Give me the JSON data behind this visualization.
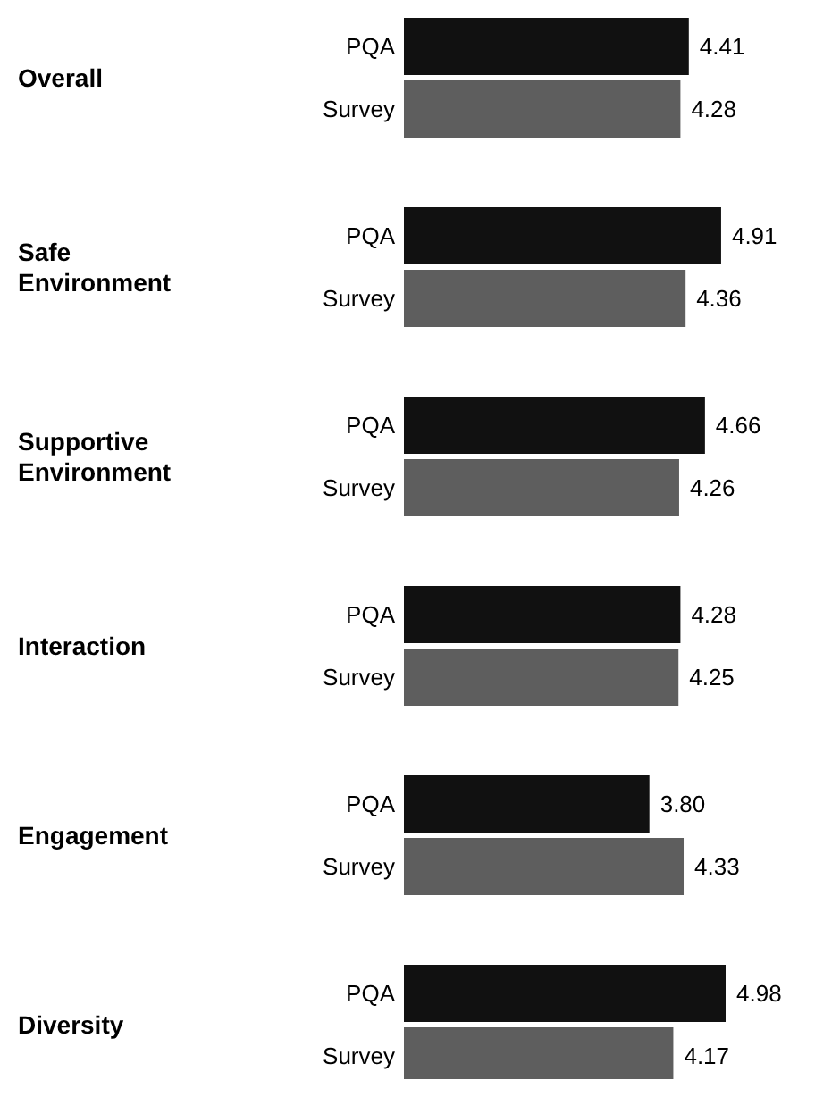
{
  "chart_data": {
    "type": "bar",
    "orientation": "horizontal",
    "categories": [
      "Overall",
      "Safe Environment",
      "Supportive Environment",
      "Interaction",
      "Engagement",
      "Diversity"
    ],
    "series": [
      {
        "name": "PQA",
        "color": "#111111",
        "values": [
          4.41,
          4.91,
          4.66,
          4.28,
          3.8,
          4.98
        ],
        "value_labels": [
          "4.41",
          "4.91",
          "4.66",
          "4.28",
          "3.80",
          "4.98"
        ]
      },
      {
        "name": "Survey",
        "color": "#5e5e5e",
        "values": [
          4.28,
          4.36,
          4.26,
          4.25,
          4.33,
          4.17
        ],
        "value_labels": [
          "4.28",
          "4.36",
          "4.26",
          "4.25",
          "4.33",
          "4.17"
        ]
      }
    ]
  }
}
